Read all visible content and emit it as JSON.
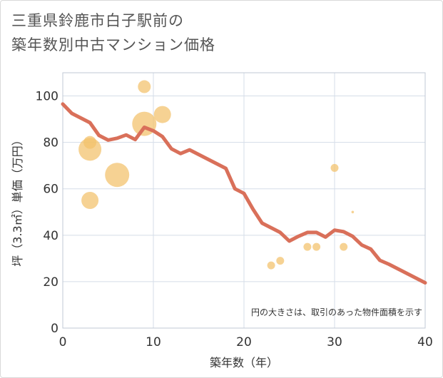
{
  "title_lines": [
    "三重県鈴鹿市白子駅前の",
    "築年数別中古マンション価格"
  ],
  "note": "円の大きさは、取引のあった物件面積を示す",
  "colors": {
    "line": "#d9705a",
    "bubble": "#f2c069",
    "grid": "#d5dde8",
    "plot_border": "#c0c8d4",
    "text": "#333333"
  },
  "chart_data": {
    "type": "scatter",
    "title": "三重県鈴鹿市白子駅前の築年数別中古マンション価格",
    "xlabel": "築年数（年）",
    "ylabel": "坪（3.3㎡）単価（万円）",
    "xlim": [
      0,
      40
    ],
    "ylim": [
      0,
      110
    ],
    "x_ticks": [
      "0",
      "10",
      "20",
      "30",
      "40"
    ],
    "y_ticks": [
      "0",
      "20",
      "40",
      "60",
      "80",
      "100"
    ],
    "grid": true,
    "series": [
      {
        "type": "line",
        "points": [
          [
            0,
            96.5
          ],
          [
            1,
            92.5
          ],
          [
            2,
            90.5
          ],
          [
            3,
            88.5
          ],
          [
            4,
            83
          ],
          [
            5,
            81
          ],
          [
            6,
            81.8
          ],
          [
            7,
            83.2
          ],
          [
            8,
            81.2
          ],
          [
            9,
            86.5
          ],
          [
            10,
            85
          ],
          [
            11,
            82.5
          ],
          [
            12,
            77.2
          ],
          [
            13,
            75.2
          ],
          [
            14,
            76.8
          ],
          [
            15,
            74.8
          ],
          [
            16,
            72.8
          ],
          [
            17,
            70.8
          ],
          [
            18,
            68.8
          ],
          [
            19,
            60
          ],
          [
            20,
            58
          ],
          [
            21,
            51.2
          ],
          [
            22,
            45.2
          ],
          [
            23,
            43.2
          ],
          [
            24,
            41.2
          ],
          [
            25,
            37.5
          ],
          [
            26,
            39.5
          ],
          [
            27,
            41.2
          ],
          [
            28,
            41.2
          ],
          [
            29,
            39.2
          ],
          [
            30,
            42.2
          ],
          [
            31,
            41.5
          ],
          [
            32,
            39.5
          ],
          [
            33,
            35.8
          ],
          [
            34,
            34
          ],
          [
            35,
            29.2
          ],
          [
            36,
            27.5
          ],
          [
            37,
            25.5
          ],
          [
            38,
            23.5
          ],
          [
            39,
            21.5
          ],
          [
            40,
            19.5
          ]
        ]
      },
      {
        "type": "bubble",
        "points": [
          {
            "x": 3,
            "y": 80,
            "size": 9
          },
          {
            "x": 3,
            "y": 77,
            "size": 16
          },
          {
            "x": 3,
            "y": 55,
            "size": 12
          },
          {
            "x": 6,
            "y": 66,
            "size": 17
          },
          {
            "x": 9,
            "y": 104,
            "size": 9
          },
          {
            "x": 9,
            "y": 88,
            "size": 17
          },
          {
            "x": 11,
            "y": 92,
            "size": 12
          },
          {
            "x": 23,
            "y": 27,
            "size": 5.5
          },
          {
            "x": 24,
            "y": 29,
            "size": 5.5
          },
          {
            "x": 27,
            "y": 35,
            "size": 5.5
          },
          {
            "x": 28,
            "y": 35,
            "size": 5.5
          },
          {
            "x": 30,
            "y": 69,
            "size": 5.5
          },
          {
            "x": 31,
            "y": 35,
            "size": 5.5
          },
          {
            "x": 32,
            "y": 50,
            "size": 1.8
          }
        ]
      }
    ]
  }
}
